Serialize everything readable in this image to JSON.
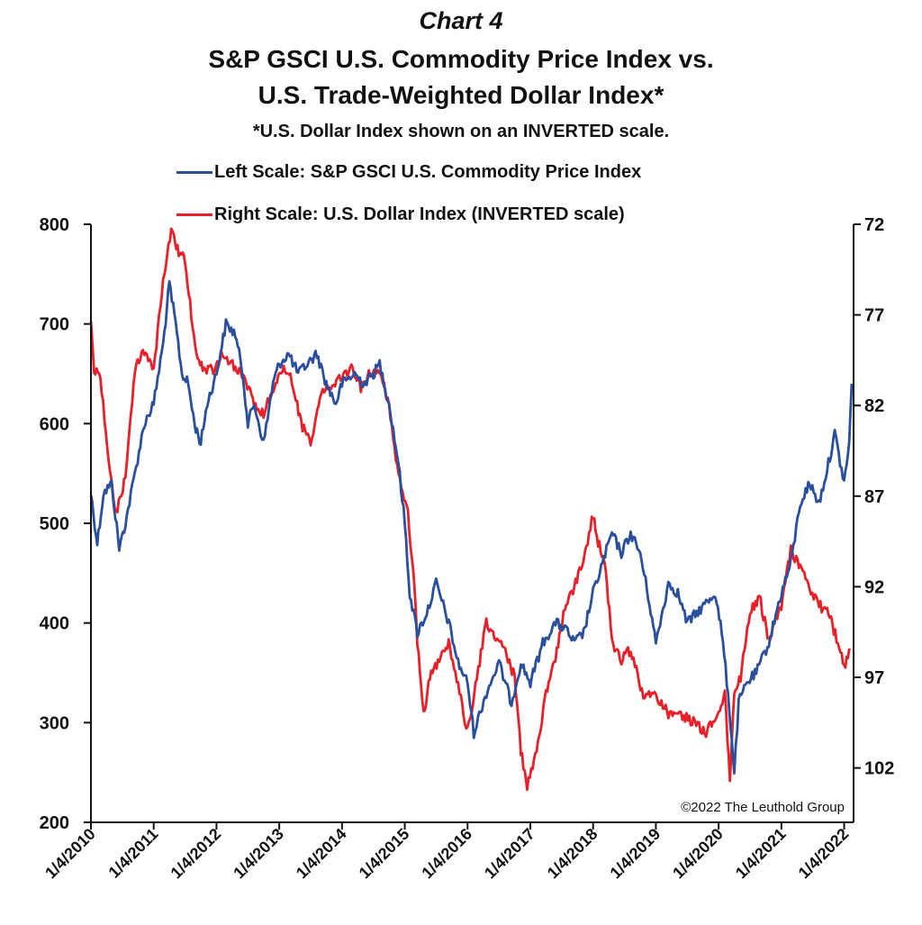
{
  "header": {
    "chart_label": "Chart 4",
    "title_line1": "S&P GSCI U.S. Commodity Price Index vs.",
    "title_line2": "U.S. Trade-Weighted Dollar Index*",
    "subtitle": "*U.S. Dollar Index shown on an INVERTED scale."
  },
  "legend": [
    {
      "label": "Left Scale: S&P GSCI U.S. Commodity Price Index",
      "color": "#2a4f9c"
    },
    {
      "label": "Right Scale: U.S. Dollar Index (INVERTED scale)",
      "color": "#e8202a"
    }
  ],
  "copyright": "©2022 The Leuthold Group",
  "chart_data": {
    "type": "line",
    "title": "S&P GSCI U.S. Commodity Price Index vs. U.S. Trade-Weighted Dollar Index*",
    "x_range": [
      2010.0,
      2022.15
    ],
    "x_tick_labels": [
      "1/4/2010",
      "1/4/2011",
      "1/4/2012",
      "1/4/2013",
      "1/4/2014",
      "1/4/2015",
      "1/4/2016",
      "1/4/2017",
      "1/4/2018",
      "1/4/2019",
      "1/4/2020",
      "1/4/2021",
      "1/4/2022"
    ],
    "y_left": {
      "label": "S&P GSCI U.S. Commodity Price Index",
      "range": [
        200,
        800
      ],
      "ticks": [
        200,
        300,
        400,
        500,
        600,
        700,
        800
      ]
    },
    "y_right": {
      "label": "U.S. Dollar Index",
      "inverted": true,
      "range": [
        72,
        105
      ],
      "ticks": [
        72,
        77,
        82,
        87,
        92,
        97,
        102
      ]
    },
    "grid": false,
    "series": [
      {
        "name": "Left Scale: S&P GSCI U.S. Commodity Price Index",
        "axis": "left",
        "color": "#2a4f9c",
        "x": [
          2010.0,
          2010.1,
          2010.2,
          2010.33,
          2010.45,
          2010.55,
          2010.7,
          2010.85,
          2011.0,
          2011.15,
          2011.25,
          2011.35,
          2011.45,
          2011.55,
          2011.65,
          2011.75,
          2011.85,
          2012.0,
          2012.15,
          2012.3,
          2012.42,
          2012.5,
          2012.6,
          2012.75,
          2012.9,
          2013.0,
          2013.15,
          2013.3,
          2013.45,
          2013.6,
          2013.75,
          2013.9,
          2014.0,
          2014.2,
          2014.35,
          2014.5,
          2014.6,
          2014.75,
          2014.9,
          2015.0,
          2015.08,
          2015.2,
          2015.35,
          2015.5,
          2015.7,
          2015.85,
          2016.0,
          2016.1,
          2016.3,
          2016.5,
          2016.7,
          2016.85,
          2017.0,
          2017.2,
          2017.4,
          2017.55,
          2017.7,
          2017.85,
          2018.0,
          2018.15,
          2018.3,
          2018.45,
          2018.6,
          2018.75,
          2018.9,
          2019.0,
          2019.2,
          2019.35,
          2019.5,
          2019.65,
          2019.8,
          2019.95,
          2020.05,
          2020.15,
          2020.25,
          2020.32,
          2020.45,
          2020.6,
          2020.8,
          2021.0,
          2021.15,
          2021.3,
          2021.45,
          2021.6,
          2021.75,
          2021.85,
          2022.0,
          2022.08,
          2022.12
        ],
        "values": [
          530,
          480,
          530,
          540,
          475,
          500,
          550,
          600,
          620,
          680,
          740,
          700,
          650,
          640,
          600,
          580,
          620,
          650,
          700,
          690,
          650,
          600,
          620,
          580,
          640,
          660,
          670,
          650,
          660,
          670,
          640,
          620,
          640,
          650,
          640,
          650,
          660,
          620,
          560,
          500,
          430,
          390,
          410,
          440,
          400,
          360,
          340,
          290,
          330,
          360,
          320,
          360,
          340,
          380,
          400,
          395,
          380,
          390,
          430,
          460,
          490,
          470,
          490,
          470,
          420,
          380,
          440,
          430,
          400,
          410,
          420,
          430,
          390,
          330,
          250,
          320,
          340,
          350,
          380,
          430,
          460,
          520,
          540,
          520,
          560,
          590,
          540,
          580,
          640
        ]
      },
      {
        "name": "Right Scale: U.S. Dollar Index (INVERTED scale)",
        "axis": "right",
        "color": "#e8202a",
        "x": [
          2010.0,
          2010.05,
          2010.15,
          2010.28,
          2010.4,
          2010.55,
          2010.7,
          2010.85,
          2011.0,
          2011.15,
          2011.28,
          2011.4,
          2011.5,
          2011.6,
          2011.7,
          2011.8,
          2011.95,
          2012.1,
          2012.3,
          2012.45,
          2012.6,
          2012.75,
          2012.9,
          2013.05,
          2013.2,
          2013.35,
          2013.5,
          2013.65,
          2013.8,
          2014.0,
          2014.15,
          2014.3,
          2014.45,
          2014.55,
          2014.65,
          2014.75,
          2014.9,
          2015.05,
          2015.15,
          2015.2,
          2015.3,
          2015.4,
          2015.55,
          2015.7,
          2015.85,
          2016.0,
          2016.15,
          2016.3,
          2016.45,
          2016.6,
          2016.75,
          2016.85,
          2016.95,
          2017.1,
          2017.25,
          2017.4,
          2017.55,
          2017.7,
          2017.85,
          2018.0,
          2018.08,
          2018.2,
          2018.3,
          2018.45,
          2018.6,
          2018.8,
          2019.0,
          2019.2,
          2019.4,
          2019.6,
          2019.8,
          2020.0,
          2020.1,
          2020.18,
          2020.25,
          2020.35,
          2020.5,
          2020.65,
          2020.8,
          2021.0,
          2021.15,
          2021.3,
          2021.45,
          2021.6,
          2021.75,
          2021.9,
          2022.0,
          2022.1
        ],
        "values": [
          77.5,
          80.0,
          80.5,
          85.0,
          88.0,
          86.0,
          80.0,
          79.0,
          80.0,
          75.0,
          72.5,
          73.5,
          74.0,
          77.0,
          79.5,
          80.0,
          80.0,
          79.0,
          80.0,
          80.5,
          82.0,
          82.5,
          81.0,
          80.0,
          80.5,
          83.0,
          84.0,
          81.5,
          81.0,
          80.5,
          80.0,
          81.0,
          80.2,
          80.0,
          80.5,
          82.0,
          86.0,
          88.0,
          92.0,
          95.0,
          99.0,
          97.0,
          96.0,
          95.0,
          97.5,
          100.0,
          97.0,
          94.0,
          95.0,
          95.5,
          97.0,
          101.0,
          103.0,
          101.0,
          98.0,
          96.0,
          93.0,
          92.0,
          90.5,
          88.0,
          89.5,
          91.0,
          95.0,
          96.0,
          95.5,
          98.0,
          98.0,
          99.0,
          99.0,
          99.5,
          100.0,
          99.0,
          98.0,
          102.5,
          98.0,
          97.0,
          93.5,
          92.5,
          95.0,
          93.0,
          90.0,
          91.0,
          92.0,
          93.0,
          93.5,
          95.0,
          96.5,
          95.5
        ]
      }
    ]
  }
}
